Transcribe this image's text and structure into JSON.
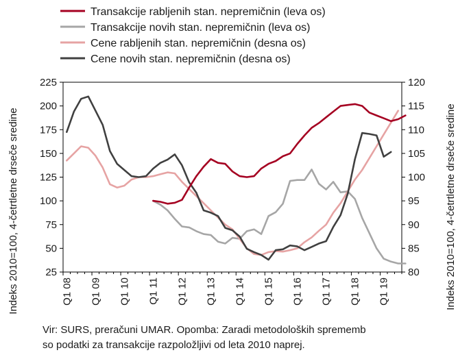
{
  "chart_data": {
    "type": "line",
    "x_tick_labels": [
      "Q1 08",
      "Q1 09",
      "Q1 10",
      "Q1 11",
      "Q1 12",
      "Q1 13",
      "Q1 14",
      "Q1 15",
      "Q1 16",
      "Q1 17",
      "Q1 18",
      "Q1 19"
    ],
    "ylabel_left": "Indeks 2010=100, 4-četrtletne drseče sredine",
    "ylabel_right": "Indeks 2010=100, 4-četrtletne drseče sredine",
    "ylim_left": [
      25,
      225
    ],
    "yticks_left": [
      25,
      50,
      75,
      100,
      125,
      150,
      175,
      200,
      225
    ],
    "ylim_right": [
      80,
      120
    ],
    "yticks_right": [
      80,
      85,
      90,
      95,
      100,
      105,
      110,
      115,
      120
    ],
    "legend_position": "top",
    "grid": false,
    "series": [
      {
        "name": "Transakcije rabljenih stan. nepremičnin (leva os)",
        "axis": "left",
        "color": "#A50021",
        "start_quarter_index": 12,
        "values": [
          100,
          99,
          97,
          98,
          101,
          114,
          126,
          136,
          144,
          140,
          139,
          131,
          126,
          125,
          126,
          134,
          139,
          142,
          147,
          150,
          160,
          169,
          177,
          182,
          188,
          194,
          200,
          201,
          202,
          200,
          193,
          190,
          187,
          184,
          186,
          190
        ]
      },
      {
        "name": "Transakcije novih stan. nepremičnin (leva os)",
        "axis": "left",
        "color": "#A6A6A6",
        "start_quarter_index": 12,
        "values": [
          100,
          96,
          90,
          81,
          73,
          72,
          68,
          65,
          64,
          57,
          55,
          61,
          60,
          68,
          70,
          65,
          84,
          88,
          97,
          121,
          122,
          122,
          133,
          118,
          112,
          120,
          109,
          110,
          102,
          82,
          66,
          50,
          39,
          36,
          34,
          34
        ]
      },
      {
        "name": "Cene rabljenih stan. nepremičnin (desna os)",
        "axis": "right",
        "color": "#E6A3A3",
        "start_quarter_index": 0,
        "values": [
          103.5,
          105,
          106.5,
          106.2,
          104.5,
          102,
          98.5,
          97.8,
          98.2,
          99.5,
          100,
          100,
          100.2,
          100.6,
          101,
          100.8,
          99,
          97.5,
          96,
          94.5,
          93,
          91.5,
          90,
          89,
          87,
          85,
          83.8,
          83.6,
          84.2,
          84.4,
          84.3,
          84.6,
          85,
          86.3,
          87.3,
          88.7,
          90,
          92.5,
          94.5,
          97,
          99.5,
          101.5,
          104,
          106.5,
          109,
          111.5,
          114
        ]
      },
      {
        "name": "Cene novih stan. nepremičnin (desna os)",
        "axis": "right",
        "color": "#404040",
        "start_quarter_index": 0,
        "values": [
          109.5,
          113.8,
          116.5,
          117,
          114,
          111,
          105.5,
          102.8,
          101.5,
          100.2,
          100,
          100.2,
          101.8,
          103,
          103.7,
          104.8,
          102.5,
          98.9,
          96.7,
          93,
          92.5,
          91.8,
          89.3,
          88.8,
          87.5,
          84.9,
          84.2,
          83.6,
          82.6,
          84.6,
          84.8,
          85.6,
          85.4,
          84.6,
          85.3,
          86,
          86.5,
          89.5,
          92,
          96.5,
          103.8,
          109.3,
          109.1,
          108.8,
          104.3,
          105.3
        ]
      }
    ]
  },
  "source_note": {
    "line1": "Vir: SURS, preračuni UMAR. Opomba: Zaradi metodoloških sprememb",
    "line2": "so podatki za transakcije razpoložljivi od leta 2010 naprej."
  }
}
